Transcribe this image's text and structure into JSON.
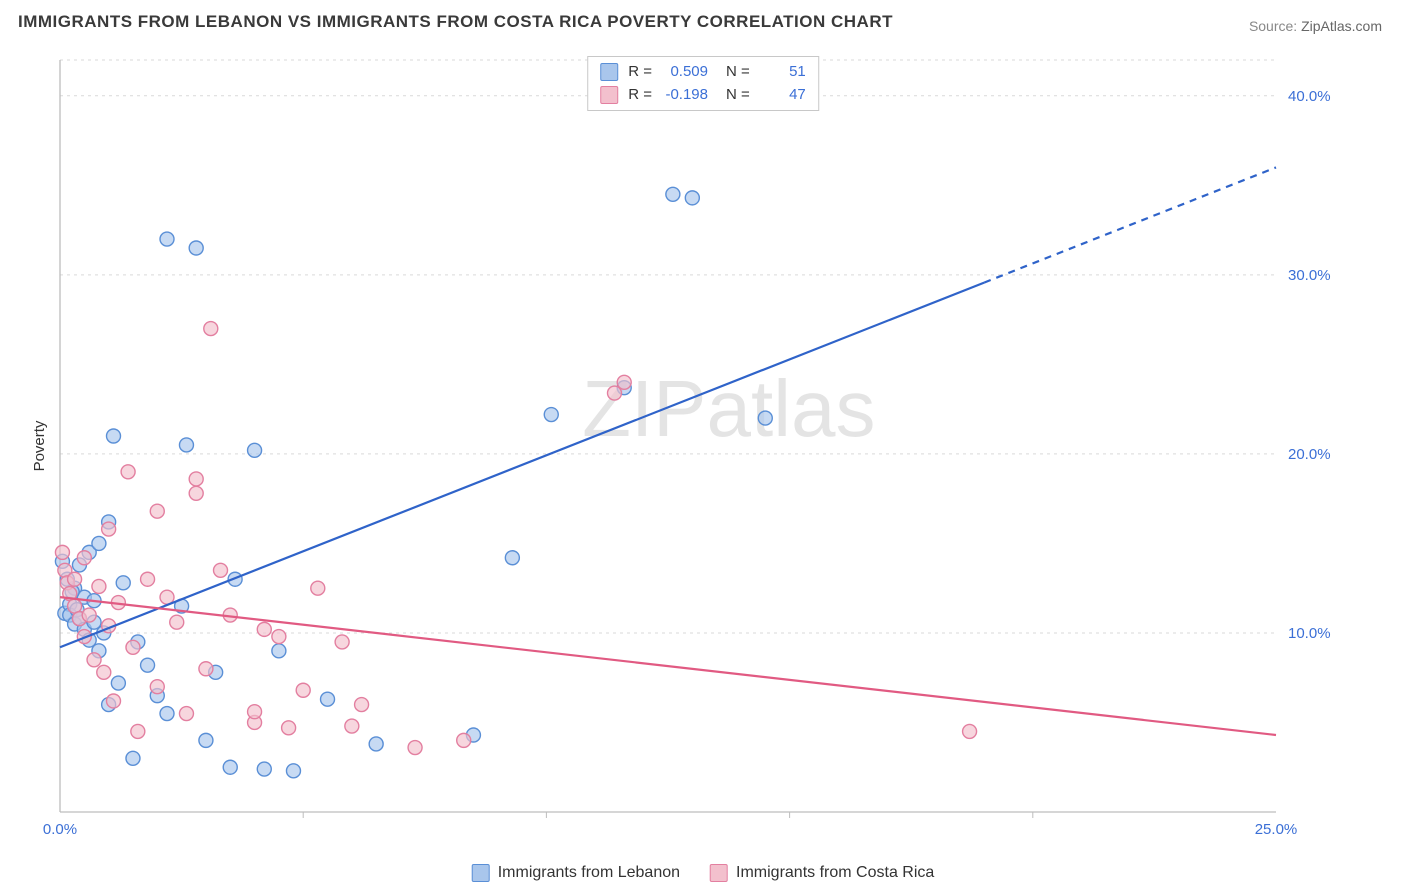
{
  "title": "IMMIGRANTS FROM LEBANON VS IMMIGRANTS FROM COSTA RICA POVERTY CORRELATION CHART",
  "source_label": "Source:",
  "source_value": "ZipAtlas.com",
  "ylabel": "Poverty",
  "watermark": "ZIPatlas",
  "chart": {
    "type": "scatter",
    "xlim": [
      0,
      25
    ],
    "ylim": [
      0,
      42
    ],
    "xtick_labels": [
      {
        "v": 0,
        "t": "0.0%"
      },
      {
        "v": 25,
        "t": "25.0%"
      }
    ],
    "xtick_marks": [
      5,
      10,
      15,
      20
    ],
    "ytick_labels": [
      {
        "v": 10,
        "t": "10.0%"
      },
      {
        "v": 20,
        "t": "20.0%"
      },
      {
        "v": 30,
        "t": "30.0%"
      },
      {
        "v": 40,
        "t": "40.0%"
      }
    ],
    "background_color": "#ffffff",
    "grid_color": "#d9d9d9",
    "marker_radius": 7,
    "marker_stroke_width": 1.4,
    "line_width": 2.2,
    "tick_label_color": "#3b6fd6",
    "series": [
      {
        "name": "Immigrants from Lebanon",
        "fill": "#a9c6ec",
        "stroke": "#5a8fd6",
        "line_color": "#2f63c9",
        "regression": {
          "x1": 0,
          "y1": 9.2,
          "x2": 25,
          "y2": 36.0,
          "dash_after_x": 19
        },
        "points": [
          [
            0.1,
            11.1
          ],
          [
            0.2,
            11.6
          ],
          [
            0.2,
            11.0
          ],
          [
            0.3,
            12.5
          ],
          [
            0.3,
            10.5
          ],
          [
            0.35,
            11.3
          ],
          [
            0.4,
            10.8
          ],
          [
            0.4,
            13.8
          ],
          [
            0.5,
            10.2
          ],
          [
            0.5,
            12.0
          ],
          [
            0.6,
            9.6
          ],
          [
            0.6,
            14.5
          ],
          [
            0.7,
            10.6
          ],
          [
            0.7,
            11.8
          ],
          [
            0.8,
            15.0
          ],
          [
            0.8,
            9.0
          ],
          [
            0.9,
            10.0
          ],
          [
            1.0,
            16.2
          ],
          [
            1.0,
            6.0
          ],
          [
            1.1,
            21.0
          ],
          [
            1.2,
            7.2
          ],
          [
            1.3,
            12.8
          ],
          [
            1.5,
            3.0
          ],
          [
            1.6,
            9.5
          ],
          [
            1.8,
            8.2
          ],
          [
            2.0,
            6.5
          ],
          [
            2.2,
            32.0
          ],
          [
            2.2,
            5.5
          ],
          [
            2.5,
            11.5
          ],
          [
            2.6,
            20.5
          ],
          [
            2.8,
            31.5
          ],
          [
            3.0,
            4.0
          ],
          [
            3.2,
            7.8
          ],
          [
            3.5,
            2.5
          ],
          [
            3.6,
            13.0
          ],
          [
            4.0,
            20.2
          ],
          [
            4.2,
            2.4
          ],
          [
            4.5,
            9.0
          ],
          [
            4.8,
            2.3
          ],
          [
            5.5,
            6.3
          ],
          [
            6.5,
            3.8
          ],
          [
            8.5,
            4.3
          ],
          [
            9.3,
            14.2
          ],
          [
            10.1,
            22.2
          ],
          [
            11.6,
            23.7
          ],
          [
            12.6,
            34.5
          ],
          [
            13.0,
            34.3
          ],
          [
            14.5,
            22.0
          ],
          [
            0.05,
            14.0
          ],
          [
            0.15,
            13.0
          ],
          [
            0.25,
            12.3
          ]
        ]
      },
      {
        "name": "Immigrants from Costa Rica",
        "fill": "#f3c0cd",
        "stroke": "#e37fa0",
        "line_color": "#e15a82",
        "regression": {
          "x1": 0,
          "y1": 12.0,
          "x2": 25,
          "y2": 4.3,
          "dash_after_x": 25
        },
        "points": [
          [
            0.1,
            13.5
          ],
          [
            0.15,
            12.8
          ],
          [
            0.2,
            12.2
          ],
          [
            0.3,
            11.5
          ],
          [
            0.3,
            13.0
          ],
          [
            0.4,
            10.8
          ],
          [
            0.5,
            9.8
          ],
          [
            0.5,
            14.2
          ],
          [
            0.6,
            11.0
          ],
          [
            0.7,
            8.5
          ],
          [
            0.8,
            12.6
          ],
          [
            0.9,
            7.8
          ],
          [
            1.0,
            10.4
          ],
          [
            1.0,
            15.8
          ],
          [
            1.1,
            6.2
          ],
          [
            1.2,
            11.7
          ],
          [
            1.4,
            19.0
          ],
          [
            1.5,
            9.2
          ],
          [
            1.6,
            4.5
          ],
          [
            1.8,
            13.0
          ],
          [
            2.0,
            16.8
          ],
          [
            2.0,
            7.0
          ],
          [
            2.2,
            12.0
          ],
          [
            2.4,
            10.6
          ],
          [
            2.6,
            5.5
          ],
          [
            2.8,
            17.8
          ],
          [
            2.8,
            18.6
          ],
          [
            3.0,
            8.0
          ],
          [
            3.1,
            27.0
          ],
          [
            3.3,
            13.5
          ],
          [
            3.5,
            11.0
          ],
          [
            4.0,
            5.0
          ],
          [
            4.0,
            5.6
          ],
          [
            4.2,
            10.2
          ],
          [
            4.5,
            9.8
          ],
          [
            4.7,
            4.7
          ],
          [
            5.0,
            6.8
          ],
          [
            5.3,
            12.5
          ],
          [
            5.8,
            9.5
          ],
          [
            6.0,
            4.8
          ],
          [
            6.2,
            6.0
          ],
          [
            7.3,
            3.6
          ],
          [
            8.3,
            4.0
          ],
          [
            11.4,
            23.4
          ],
          [
            11.6,
            24.0
          ],
          [
            18.7,
            4.5
          ],
          [
            0.05,
            14.5
          ]
        ]
      }
    ]
  },
  "legend_top": {
    "rows": [
      {
        "swatch_fill": "#a9c6ec",
        "swatch_stroke": "#5a8fd6",
        "r_label": "R =",
        "r_value": "0.509",
        "n_label": "N =",
        "n_value": "51"
      },
      {
        "swatch_fill": "#f3c0cd",
        "swatch_stroke": "#e37fa0",
        "r_label": "R =",
        "r_value": "-0.198",
        "n_label": "N =",
        "n_value": "47"
      }
    ]
  },
  "legend_bottom": {
    "items": [
      {
        "swatch_fill": "#a9c6ec",
        "swatch_stroke": "#5a8fd6",
        "label": "Immigrants from Lebanon"
      },
      {
        "swatch_fill": "#f3c0cd",
        "swatch_stroke": "#e37fa0",
        "label": "Immigrants from Costa Rica"
      }
    ]
  }
}
